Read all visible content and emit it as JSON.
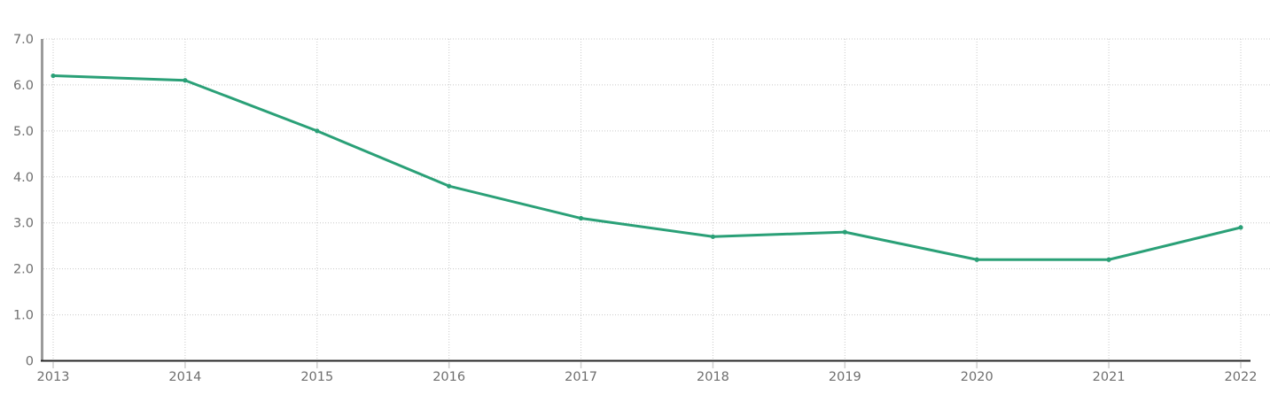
{
  "chart_data": {
    "type": "line",
    "categories": [
      "2013",
      "2014",
      "2015",
      "2016",
      "2017",
      "2018",
      "2019",
      "2020",
      "2021",
      "2022"
    ],
    "series": [
      {
        "color": "#2aa077",
        "values": [
          6.2,
          6.1,
          5.0,
          3.8,
          3.1,
          2.7,
          2.8,
          2.2,
          2.2,
          2.9
        ]
      }
    ],
    "y_ticks": [
      {
        "value": 0,
        "label": "0"
      },
      {
        "value": 1,
        "label": "1.0"
      },
      {
        "value": 2,
        "label": "2.0"
      },
      {
        "value": 3,
        "label": "3.0"
      },
      {
        "value": 4,
        "label": "4.0"
      },
      {
        "value": 5,
        "label": "5.0"
      },
      {
        "value": 6,
        "label": "6.0"
      },
      {
        "value": 7,
        "label": "7.0"
      }
    ],
    "ylim": [
      0,
      7
    ],
    "xlabel": "",
    "ylabel": "",
    "grid": "dotted",
    "legend": "none",
    "marker": "dot",
    "tick_label_color": "#6e6e6e"
  }
}
